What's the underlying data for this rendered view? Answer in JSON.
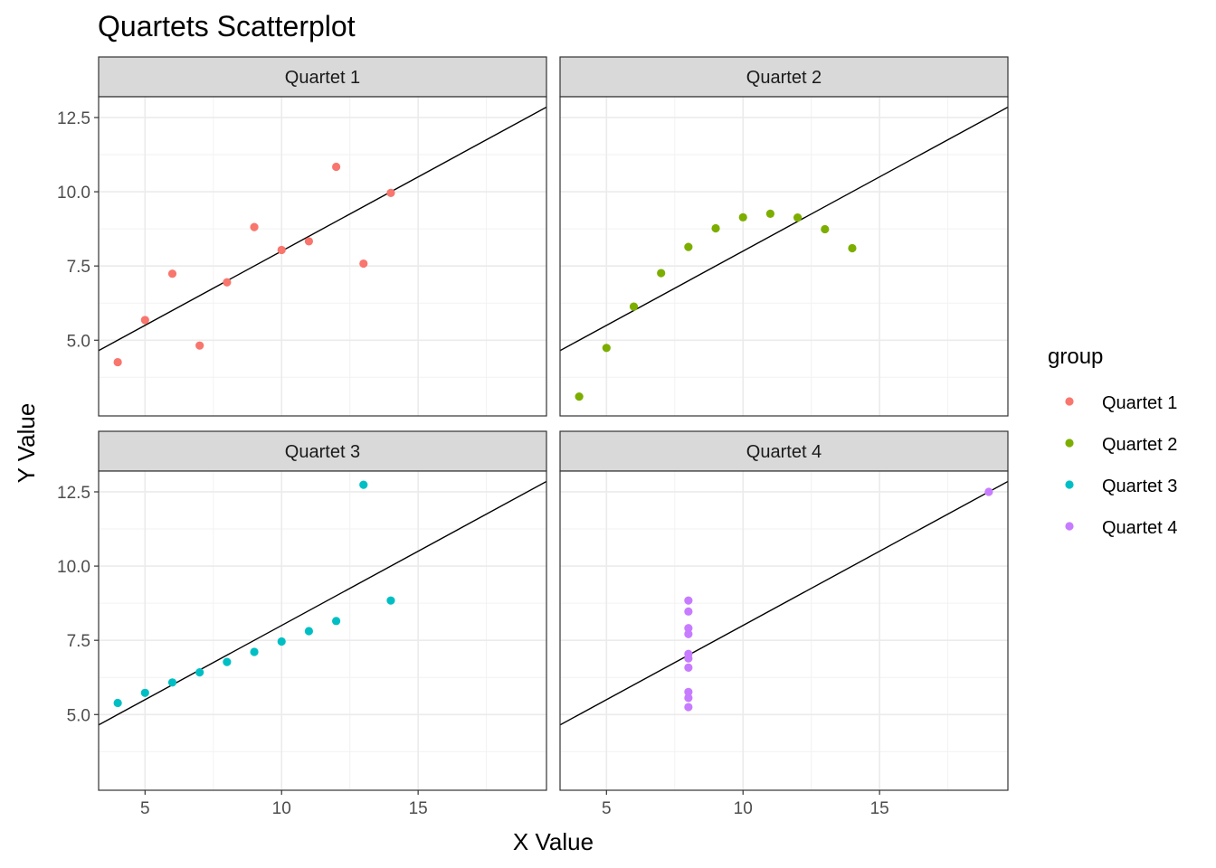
{
  "chart_data": {
    "type": "scatter",
    "title": "Quartets Scatterplot",
    "xlabel": "X Value",
    "ylabel": "Y Value",
    "xlim": [
      3.3,
      19.7
    ],
    "ylim": [
      2.45,
      13.2
    ],
    "x_ticks": [
      5,
      10,
      15
    ],
    "x_tick_labels": [
      "5",
      "10",
      "15"
    ],
    "y_ticks": [
      5.0,
      7.5,
      10.0,
      12.5
    ],
    "y_tick_labels": [
      "5.0",
      "7.5",
      "10.0",
      "12.5"
    ],
    "grid": true,
    "facet_layout": "2x2",
    "legend": {
      "title": "group",
      "position": "right"
    },
    "reference_line": {
      "intercept": 3.0,
      "slope": 0.5
    },
    "series": [
      {
        "name": "Quartet 1",
        "color": "#F8766D",
        "x": [
          10,
          8,
          13,
          9,
          11,
          14,
          6,
          4,
          12,
          7,
          5
        ],
        "y": [
          8.04,
          6.95,
          7.58,
          8.81,
          8.33,
          9.96,
          7.24,
          4.26,
          10.84,
          4.82,
          5.68
        ]
      },
      {
        "name": "Quartet 2",
        "color": "#7CAE00",
        "x": [
          10,
          8,
          13,
          9,
          11,
          14,
          6,
          4,
          12,
          7,
          5
        ],
        "y": [
          9.14,
          8.14,
          8.74,
          8.77,
          9.26,
          8.1,
          6.13,
          3.1,
          9.13,
          7.26,
          4.74
        ]
      },
      {
        "name": "Quartet 3",
        "color": "#00BFC4",
        "x": [
          10,
          8,
          13,
          9,
          11,
          14,
          6,
          4,
          12,
          7,
          5
        ],
        "y": [
          7.46,
          6.77,
          12.74,
          7.11,
          7.81,
          8.84,
          6.08,
          5.39,
          8.15,
          6.42,
          5.73
        ]
      },
      {
        "name": "Quartet 4",
        "color": "#C77CFF",
        "x": [
          8,
          8,
          8,
          8,
          8,
          8,
          8,
          19,
          8,
          8,
          8
        ],
        "y": [
          6.58,
          5.76,
          7.71,
          8.84,
          8.47,
          7.04,
          5.25,
          12.5,
          5.56,
          7.91,
          6.89
        ]
      }
    ]
  }
}
